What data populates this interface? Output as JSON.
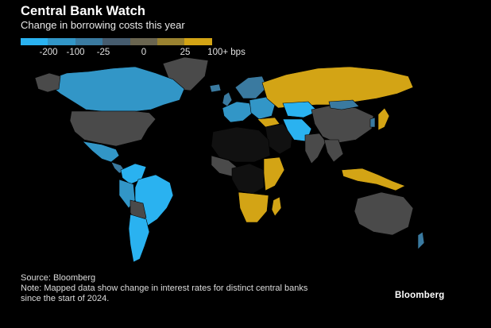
{
  "header": {
    "title": "Central Bank Watch",
    "subtitle": "Change in borrowing costs this year"
  },
  "legend": {
    "colors": [
      "#2ab2f0",
      "#3296c7",
      "#3a7aa0",
      "#465c6e",
      "#6a6550",
      "#9a8230",
      "#d3a415"
    ],
    "labels": [
      "-200",
      "-100",
      "-25",
      "0",
      "25",
      "100+ bps"
    ]
  },
  "map_colors": {
    "cut_large": "#2ab2f0",
    "cut_mid": "#3296c7",
    "cut_small": "#3a7aa0",
    "unchanged": "#4a4a4a",
    "hike_large": "#d3a415",
    "no_data": "#111111"
  },
  "footer": {
    "source": "Source: Bloomberg",
    "note_line1": "Note: Mapped data show change in interest rates for distinct central banks",
    "note_line2": "since the start of 2024."
  },
  "logo": {
    "text": "Bloomberg"
  }
}
